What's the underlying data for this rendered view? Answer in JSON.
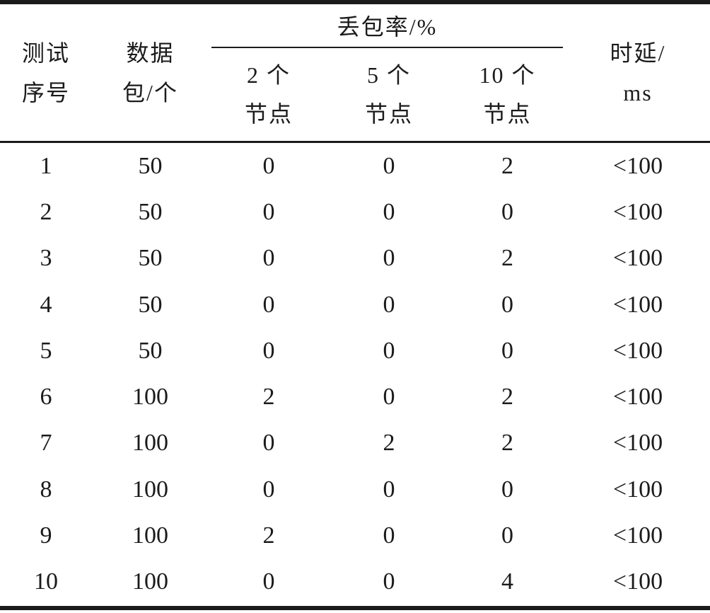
{
  "colors": {
    "ink": "#1b1b1b",
    "background": "#ffffff"
  },
  "table": {
    "header": {
      "test_no": {
        "line1": "测试",
        "line2": "序号"
      },
      "packets": {
        "line1": "数据",
        "line2": "包/个"
      },
      "loss_group": {
        "title": "丢包率/%"
      },
      "loss_subcols": [
        {
          "line1": "2 个",
          "line2": "节点"
        },
        {
          "line1": "5 个",
          "line2": "节点"
        },
        {
          "line1": "10 个",
          "line2": "节点"
        }
      ],
      "delay": {
        "line1": "时延/",
        "line2": "ms"
      }
    },
    "rows": [
      {
        "no": "1",
        "packets": "50",
        "loss_2": "0",
        "loss_5": "0",
        "loss_10": "2",
        "delay": "<100"
      },
      {
        "no": "2",
        "packets": "50",
        "loss_2": "0",
        "loss_5": "0",
        "loss_10": "0",
        "delay": "<100"
      },
      {
        "no": "3",
        "packets": "50",
        "loss_2": "0",
        "loss_5": "0",
        "loss_10": "2",
        "delay": "<100"
      },
      {
        "no": "4",
        "packets": "50",
        "loss_2": "0",
        "loss_5": "0",
        "loss_10": "0",
        "delay": "<100"
      },
      {
        "no": "5",
        "packets": "50",
        "loss_2": "0",
        "loss_5": "0",
        "loss_10": "0",
        "delay": "<100"
      },
      {
        "no": "6",
        "packets": "100",
        "loss_2": "2",
        "loss_5": "0",
        "loss_10": "2",
        "delay": "<100"
      },
      {
        "no": "7",
        "packets": "100",
        "loss_2": "0",
        "loss_5": "2",
        "loss_10": "2",
        "delay": "<100"
      },
      {
        "no": "8",
        "packets": "100",
        "loss_2": "0",
        "loss_5": "0",
        "loss_10": "0",
        "delay": "<100"
      },
      {
        "no": "9",
        "packets": "100",
        "loss_2": "2",
        "loss_5": "0",
        "loss_10": "0",
        "delay": "<100"
      },
      {
        "no": "10",
        "packets": "100",
        "loss_2": "0",
        "loss_5": "0",
        "loss_10": "4",
        "delay": "<100"
      }
    ]
  }
}
